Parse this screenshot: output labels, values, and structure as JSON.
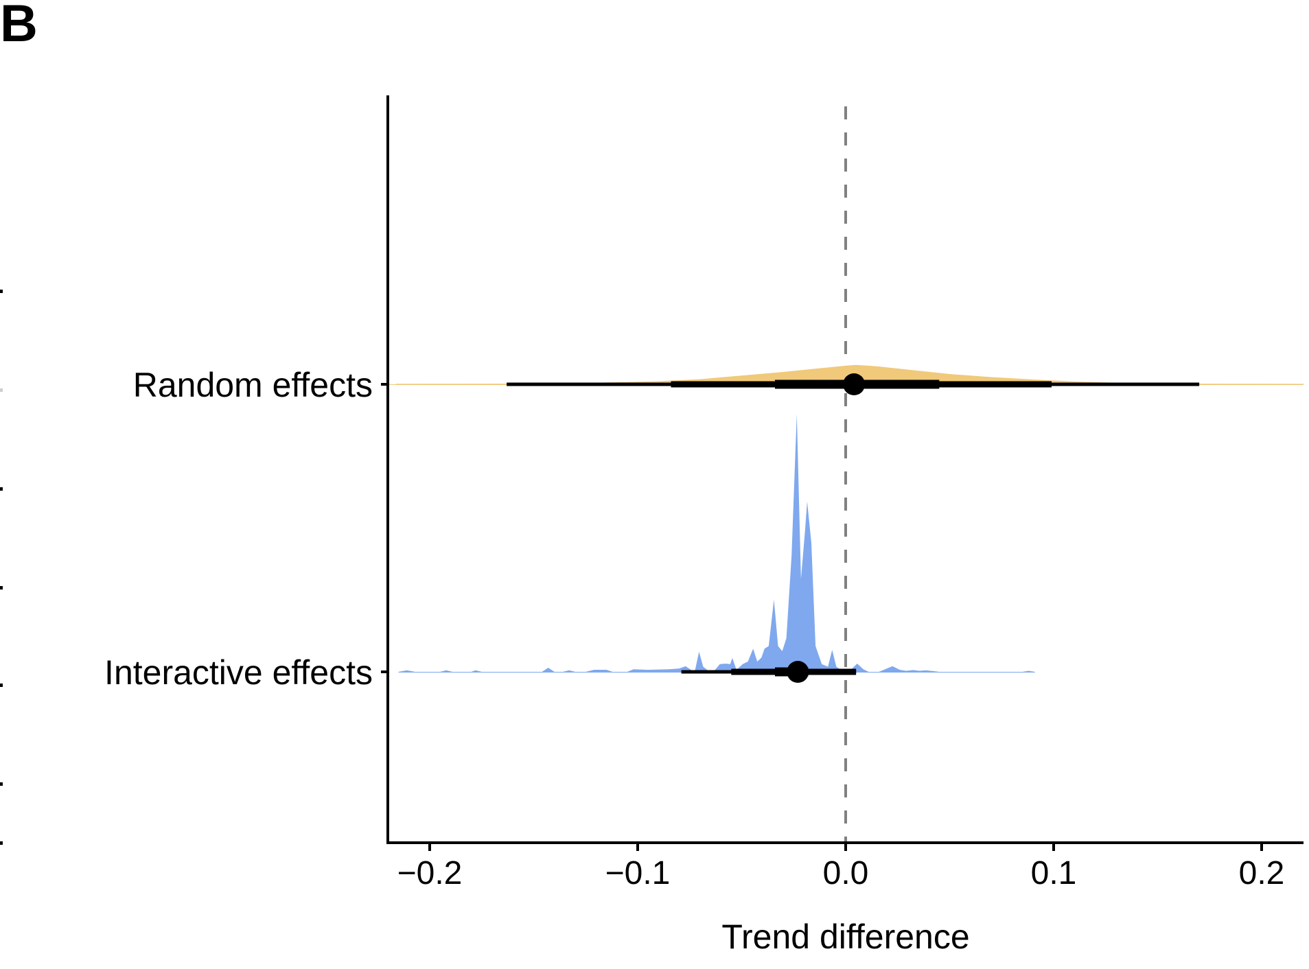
{
  "panel_label": "B",
  "chart_data": {
    "type": "halfeye",
    "title": "",
    "xlabel": "Trend difference",
    "ylabel": "",
    "xlim": [
      -0.22,
      0.22
    ],
    "x_ticks": [
      -0.2,
      -0.1,
      0.0,
      0.1,
      0.2
    ],
    "x_tick_labels": [
      "−0.2",
      "−0.1",
      "0.0",
      "0.1",
      "0.2"
    ],
    "reference_line": {
      "x": 0.0,
      "style": "dashed",
      "color": "#808080"
    },
    "grid": false,
    "legend": "none",
    "categories": [
      "Random effects",
      "Interactive effects"
    ],
    "series": [
      {
        "name": "Random effects",
        "color": "#F0C97A",
        "point_estimate": 0.004,
        "interval_66": [
          -0.034,
          0.045
        ],
        "interval_95": [
          -0.084,
          0.099
        ],
        "interval_99": [
          -0.163,
          0.17
        ],
        "density": [
          [
            -0.22,
            0.0
          ],
          [
            -0.18,
            0.001
          ],
          [
            -0.16,
            0.002
          ],
          [
            -0.12,
            0.006
          ],
          [
            -0.09,
            0.012
          ],
          [
            -0.07,
            0.02
          ],
          [
            -0.05,
            0.034
          ],
          [
            -0.03,
            0.048
          ],
          [
            -0.015,
            0.06
          ],
          [
            0.0,
            0.072
          ],
          [
            0.005,
            0.075
          ],
          [
            0.015,
            0.07
          ],
          [
            0.03,
            0.057
          ],
          [
            0.05,
            0.04
          ],
          [
            0.07,
            0.028
          ],
          [
            0.09,
            0.019
          ],
          [
            0.11,
            0.011
          ],
          [
            0.13,
            0.006
          ],
          [
            0.15,
            0.003
          ],
          [
            0.18,
            0.001
          ],
          [
            0.22,
            0.0
          ]
        ]
      },
      {
        "name": "Interactive effects",
        "color": "#7FA8EE",
        "point_estimate": -0.023,
        "interval_66": [
          -0.034,
          -0.018
        ],
        "interval_95": [
          -0.055,
          0.005
        ],
        "interval_99": [
          -0.079,
          0.005
        ],
        "density": [
          [
            -0.215,
            0.0
          ],
          [
            -0.211,
            0.006
          ],
          [
            -0.207,
            0.0
          ],
          [
            -0.195,
            0.0
          ],
          [
            -0.192,
            0.006
          ],
          [
            -0.189,
            0.0
          ],
          [
            -0.18,
            0.0
          ],
          [
            -0.178,
            0.006
          ],
          [
            -0.175,
            0.0
          ],
          [
            -0.146,
            0.0
          ],
          [
            -0.143,
            0.016
          ],
          [
            -0.14,
            0.0
          ],
          [
            -0.136,
            0.0
          ],
          [
            -0.133,
            0.006
          ],
          [
            -0.13,
            0.0
          ],
          [
            -0.125,
            0.0
          ],
          [
            -0.121,
            0.008
          ],
          [
            -0.115,
            0.008
          ],
          [
            -0.112,
            0.0
          ],
          [
            -0.105,
            0.0
          ],
          [
            -0.102,
            0.01
          ],
          [
            -0.095,
            0.008
          ],
          [
            -0.085,
            0.01
          ],
          [
            -0.08,
            0.013
          ],
          [
            -0.077,
            0.022
          ],
          [
            -0.074,
            0.006
          ],
          [
            -0.0725,
            0.003
          ],
          [
            -0.0705,
            0.078
          ],
          [
            -0.0685,
            0.02
          ],
          [
            -0.066,
            0.004
          ],
          [
            -0.063,
            0.006
          ],
          [
            -0.0605,
            0.03
          ],
          [
            -0.0575,
            0.032
          ],
          [
            -0.0555,
            0.03
          ],
          [
            -0.0545,
            0.054
          ],
          [
            -0.0525,
            0.008
          ],
          [
            -0.0495,
            0.03
          ],
          [
            -0.047,
            0.04
          ],
          [
            -0.0445,
            0.09
          ],
          [
            -0.0425,
            0.04
          ],
          [
            -0.0405,
            0.055
          ],
          [
            -0.039,
            0.09
          ],
          [
            -0.037,
            0.1
          ],
          [
            -0.0345,
            0.28
          ],
          [
            -0.0325,
            0.1
          ],
          [
            -0.0305,
            0.08
          ],
          [
            -0.0285,
            0.13
          ],
          [
            -0.026,
            0.45
          ],
          [
            -0.0235,
            1.0
          ],
          [
            -0.0215,
            0.36
          ],
          [
            -0.0195,
            0.55
          ],
          [
            -0.0185,
            0.66
          ],
          [
            -0.0165,
            0.5
          ],
          [
            -0.0145,
            0.1
          ],
          [
            -0.0115,
            0.03
          ],
          [
            -0.0085,
            0.02
          ],
          [
            -0.0065,
            0.085
          ],
          [
            -0.0045,
            0.02
          ],
          [
            -0.0015,
            0.004
          ],
          [
            0.0,
            0.0
          ],
          [
            0.0015,
            0.0
          ],
          [
            0.0055,
            0.032
          ],
          [
            0.0085,
            0.01
          ],
          [
            0.011,
            0.0
          ],
          [
            0.016,
            0.0
          ],
          [
            0.0225,
            0.022
          ],
          [
            0.026,
            0.008
          ],
          [
            0.029,
            0.004
          ],
          [
            0.0325,
            0.007
          ],
          [
            0.0355,
            0.004
          ],
          [
            0.0385,
            0.006
          ],
          [
            0.042,
            0.003
          ],
          [
            0.045,
            0.0
          ],
          [
            0.085,
            0.0
          ],
          [
            0.088,
            0.004
          ],
          [
            0.091,
            0.0
          ]
        ]
      }
    ]
  }
}
